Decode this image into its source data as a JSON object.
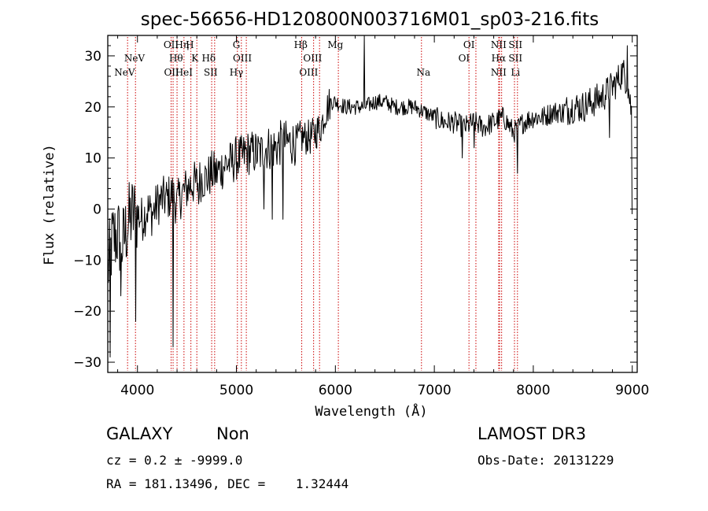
{
  "chart_data": {
    "type": "line",
    "title": "spec-56656-HD120800N003716M01_sp03-216.fits",
    "xlabel": "Wavelength (Å)",
    "ylabel": "Flux (relative)",
    "xlim": [
      3700,
      9050
    ],
    "ylim": [
      -32,
      34
    ],
    "xticks": [
      4000,
      5000,
      6000,
      7000,
      8000,
      9000
    ],
    "yticks": [
      -30,
      -20,
      -10,
      0,
      10,
      20,
      30
    ],
    "grid": false,
    "series": [
      {
        "x": [
          3700,
          3750,
          3800,
          3850,
          3900,
          3950,
          4000,
          4050,
          4100,
          4150,
          4200,
          4250,
          4300,
          4350,
          4400,
          4450,
          4500,
          4550,
          4600,
          4650,
          4700,
          4750,
          4800,
          4850,
          4900,
          4950,
          5000,
          5050,
          5100,
          5150,
          5200,
          5250,
          5300,
          5350,
          5400,
          5450,
          5500,
          5550,
          5600,
          5650,
          5700,
          5750,
          5800,
          5850,
          5900,
          5950,
          6000,
          6100,
          6200,
          6300,
          6400,
          6500,
          6600,
          6700,
          6800,
          6900,
          7000,
          7100,
          7200,
          7300,
          7400,
          7500,
          7600,
          7700,
          7800,
          7900,
          8000,
          8100,
          8200,
          8300,
          8400,
          8500,
          8600,
          8700,
          8800,
          8850,
          8900,
          8950,
          9000
        ],
        "y": [
          -12,
          -6,
          -5,
          -7,
          -3,
          -1,
          -1,
          -2,
          0,
          -1,
          1,
          2,
          2,
          3,
          1,
          3,
          4,
          5,
          5,
          6,
          6,
          7,
          7,
          8,
          9,
          9,
          10,
          10,
          11,
          11,
          11,
          11,
          12,
          12,
          12,
          13,
          13,
          13,
          13,
          14,
          14,
          14,
          15,
          16,
          19,
          21,
          21,
          20,
          20,
          20,
          21,
          21,
          20,
          20,
          20,
          19,
          18,
          17,
          17,
          16,
          17,
          16,
          17,
          18,
          15,
          17,
          18,
          18,
          19,
          19,
          20,
          20,
          21,
          22,
          24,
          25,
          27,
          25,
          18
        ]
      }
    ],
    "spikes": [
      {
        "x": 3725,
        "y": -29
      },
      {
        "x": 3835,
        "y": -17
      },
      {
        "x": 3985,
        "y": -22
      },
      {
        "x": 4358,
        "y": -27
      },
      {
        "x": 4620,
        "y": 1
      },
      {
        "x": 5280,
        "y": 0
      },
      {
        "x": 5360,
        "y": -2
      },
      {
        "x": 5470,
        "y": -2
      },
      {
        "x": 6290,
        "y": 34
      },
      {
        "x": 7280,
        "y": 10
      },
      {
        "x": 7400,
        "y": 12
      },
      {
        "x": 7840,
        "y": 7
      },
      {
        "x": 8770,
        "y": 14
      },
      {
        "x": 8950,
        "y": 32
      },
      {
        "x": 9000,
        "y": -1
      }
    ],
    "spectral_lines": [
      {
        "x": 3870,
        "label": "NeV",
        "row": 3
      },
      {
        "x": 3970,
        "label": "NeV",
        "row": 2
      },
      {
        "x": 4340,
        "label": "OII",
        "row": 1
      },
      {
        "x": 4345,
        "label": "OII",
        "row": 3
      },
      {
        "x": 4390,
        "label": "Hθ",
        "row": 2
      },
      {
        "x": 4450,
        "label": "Hη",
        "row": 1
      },
      {
        "x": 4470,
        "label": "HeI",
        "row": 3
      },
      {
        "x": 4530,
        "label": "H",
        "row": 1
      },
      {
        "x": 4580,
        "label": "K",
        "row": 2
      },
      {
        "x": 4720,
        "label": "Hδ",
        "row": 2
      },
      {
        "x": 4740,
        "label": "SII",
        "row": 3
      },
      {
        "x": 5000,
        "label": "G",
        "row": 1
      },
      {
        "x": 5060,
        "label": "OIII",
        "row": 2
      },
      {
        "x": 5000,
        "label": "Hγ",
        "row": 3
      },
      {
        "x": 5650,
        "label": "Hβ",
        "row": 1
      },
      {
        "x": 5770,
        "label": "OIII",
        "row": 2
      },
      {
        "x": 5730,
        "label": "OIII",
        "row": 3
      },
      {
        "x": 6000,
        "label": "Mg",
        "row": 1
      },
      {
        "x": 6890,
        "label": "Na",
        "row": 3
      },
      {
        "x": 7350,
        "label": "OI",
        "row": 1
      },
      {
        "x": 7300,
        "label": "OI",
        "row": 2
      },
      {
        "x": 7650,
        "label": "NII",
        "row": 1
      },
      {
        "x": 7650,
        "label": "Hα",
        "row": 2
      },
      {
        "x": 7650,
        "label": "NII",
        "row": 3
      },
      {
        "x": 7820,
        "label": "SII",
        "row": 1
      },
      {
        "x": 7820,
        "label": "SII",
        "row": 2
      },
      {
        "x": 7820,
        "label": "Li",
        "row": 3
      }
    ],
    "line_marker_x": [
      3900,
      3980,
      4340,
      4360,
      4400,
      4470,
      4540,
      4600,
      4750,
      4780,
      5010,
      5050,
      5100,
      5660,
      5780,
      5840,
      6030,
      6870,
      7350,
      7420,
      7650,
      7660,
      7680,
      7810,
      7840
    ]
  },
  "footer": {
    "galaxy": "GALAXY",
    "non": "Non",
    "survey": "LAMOST DR3",
    "cz": "cz = 0.2 ± -9999.0",
    "obs_date": "Obs-Date: 20131229",
    "radec": "RA = 181.13496, DEC =    1.32444"
  },
  "colors": {
    "spectrum": "#000000",
    "line_marker": "#cc0000"
  }
}
